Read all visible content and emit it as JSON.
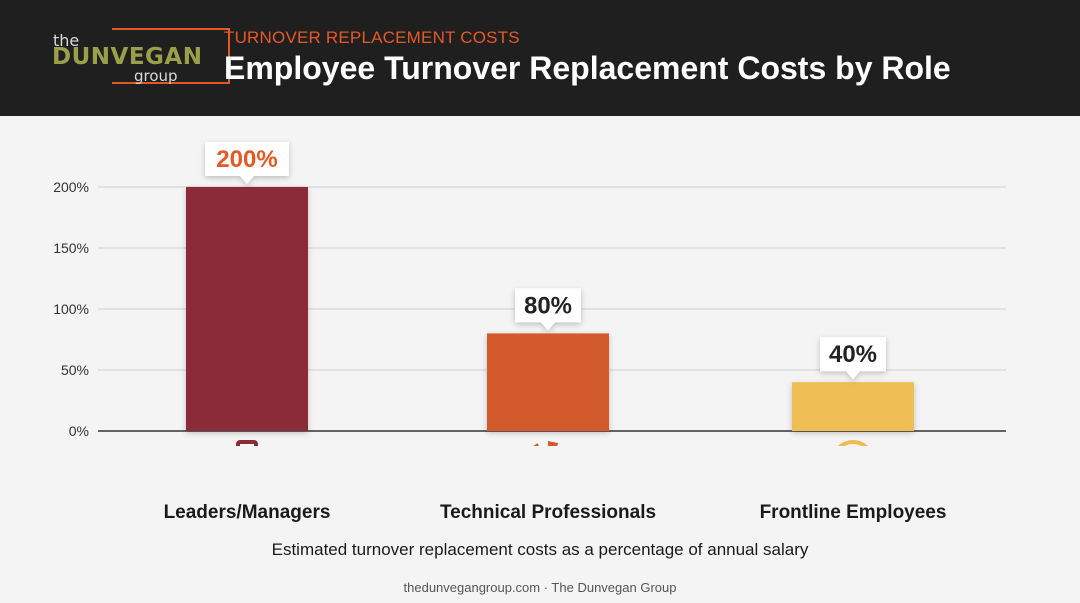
{
  "header": {
    "kicker": "TURNOVER REPLACEMENT COSTS",
    "title": "Employee Turnover Replacement Costs by Role"
  },
  "logo": {
    "the": "the",
    "name": "DUNVEGAN",
    "group": "group"
  },
  "colors": {
    "header_bg": "#1f1f1f",
    "accent": "#e45a25",
    "bar_leaders": "#8b2b37",
    "bar_technical": "#d35a2a",
    "bar_frontline": "#eebd52"
  },
  "icons": [
    "briefcase-tie-icon",
    "gear-wrench-icon",
    "headset-person-icon"
  ],
  "chart_data": {
    "type": "bar",
    "categories": [
      "Leaders/Managers",
      "Technical Professionals",
      "Frontline Employees"
    ],
    "values": [
      200,
      80,
      40
    ],
    "value_labels": [
      "200%",
      "80%",
      "40%"
    ],
    "yticks": [
      "0%",
      "50%",
      "100%",
      "150%",
      "200%"
    ],
    "ylim": [
      0,
      200
    ],
    "grid": true,
    "caption": "Estimated turnover replacement costs as a percentage of annual salary"
  },
  "footer": "thedunvegangroup.com · The Dunvegan Group"
}
